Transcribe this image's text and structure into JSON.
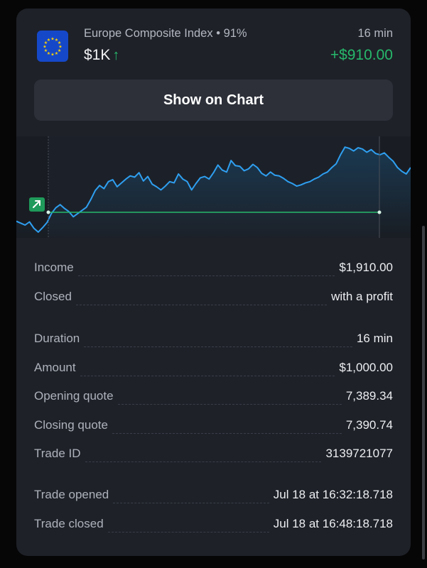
{
  "trade": {
    "asset_name": "Europe Composite Index",
    "payout": "91%",
    "duration": "16 min",
    "amount_short": "$1K",
    "direction_icon": "up-arrow-icon",
    "profit": "+$910.00",
    "flag_icon": "eu-flag-icon"
  },
  "actions": {
    "show_on_chart_label": "Show on Chart"
  },
  "chart_data": {
    "type": "line",
    "title": "",
    "xlabel": "",
    "ylabel": "",
    "series": [
      {
        "values": [
          -14,
          -17,
          -20,
          -15,
          -25,
          -31,
          -24,
          -16,
          -2,
          7,
          12,
          6,
          1,
          -7,
          -2,
          3,
          8,
          20,
          34,
          42,
          37,
          48,
          51,
          40,
          46,
          52,
          57,
          55,
          62,
          49,
          56,
          44,
          40,
          35,
          41,
          48,
          46,
          60,
          52,
          48,
          35,
          45,
          54,
          56,
          52,
          62,
          74,
          66,
          63,
          81,
          73,
          72,
          65,
          68,
          75,
          70,
          61,
          57,
          63,
          58,
          57,
          53,
          48,
          45,
          41,
          43,
          46,
          48,
          52,
          55,
          60,
          63,
          70,
          76,
          90,
          102,
          100,
          96,
          101,
          99,
          94,
          98,
          92,
          90,
          93,
          86,
          80,
          70,
          64,
          60,
          70
        ]
      }
    ],
    "entry_level": 0,
    "marker": "entry-up-arrow",
    "colors": {
      "line": "#2f9ff0",
      "fill": "#1a3b55",
      "entry": "#27b86b",
      "entry_marker_bg": "#1f9a5a"
    }
  },
  "details": {
    "group1": [
      {
        "label": "Income",
        "value": "$1,910.00"
      },
      {
        "label": "Closed",
        "value": "with a profit"
      }
    ],
    "group2": [
      {
        "label": "Duration",
        "value": "16 min"
      },
      {
        "label": "Amount",
        "value": "$1,000.00"
      },
      {
        "label": "Opening quote",
        "value": "7,389.34"
      },
      {
        "label": "Closing quote",
        "value": "7,390.74"
      },
      {
        "label": "Trade ID",
        "value": "3139721077"
      }
    ],
    "group3": [
      {
        "label": "Trade opened",
        "value": "Jul 18 at 16:32:18.718"
      },
      {
        "label": "Trade closed",
        "value": "Jul 18 at 16:48:18.718"
      }
    ]
  }
}
